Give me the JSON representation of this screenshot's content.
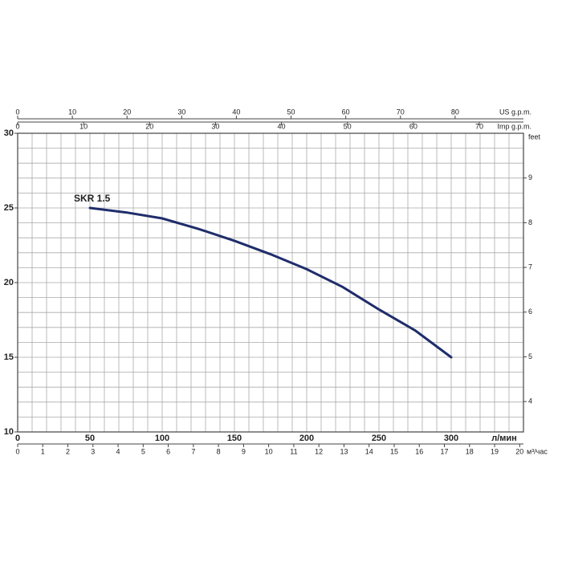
{
  "chart_data": {
    "type": "line",
    "x": [
      50,
      75,
      100,
      125,
      150,
      175,
      200,
      225,
      250,
      275,
      300
    ],
    "series": [
      {
        "name": "SKR 1.5",
        "color": "#1f2d6b",
        "values": [
          25.0,
          24.7,
          24.3,
          23.6,
          22.8,
          21.9,
          20.9,
          19.7,
          18.2,
          16.8,
          15.0
        ]
      }
    ],
    "xlabel": "л/мин",
    "xlim": [
      0,
      350
    ],
    "xticks": [
      0,
      50,
      100,
      150,
      200,
      250,
      300
    ],
    "xgrid": [
      0,
      10,
      20,
      30,
      40,
      50,
      60,
      70,
      80,
      90,
      100,
      110,
      120,
      130,
      140,
      150,
      160,
      170,
      180,
      190,
      200,
      210,
      220,
      230,
      240,
      250,
      260,
      270,
      280,
      290,
      300,
      310,
      320,
      330,
      340,
      350
    ],
    "ylim": [
      10,
      30
    ],
    "yticks": [
      10,
      15,
      20,
      25,
      30
    ],
    "ygrid": [
      10,
      11,
      12,
      13,
      14,
      15,
      16,
      17,
      18,
      19,
      20,
      21,
      22,
      23,
      24,
      25,
      26,
      27,
      28,
      29,
      30
    ],
    "y2label": "feet",
    "y2lim": [
      3.32,
      10.0
    ],
    "y2ticks": [
      4,
      5,
      6,
      7,
      8,
      9
    ],
    "x2_axes": [
      {
        "label": "м³/час",
        "lim": [
          0,
          20.15
        ],
        "ticks": [
          0,
          1,
          2,
          3,
          4,
          5,
          6,
          7,
          8,
          9,
          10,
          11,
          12,
          13,
          14,
          15,
          16,
          17,
          18,
          19,
          20
        ]
      },
      {
        "label": "US g.p.m.",
        "lim": [
          0,
          92.5
        ],
        "ticks": [
          0,
          10,
          20,
          30,
          40,
          50,
          60,
          70,
          80
        ]
      },
      {
        "label": "Imp g.p.m.",
        "lim": [
          0,
          76.7
        ],
        "ticks": [
          0,
          10,
          20,
          30,
          40,
          50,
          60,
          70
        ]
      }
    ],
    "grid": true
  }
}
